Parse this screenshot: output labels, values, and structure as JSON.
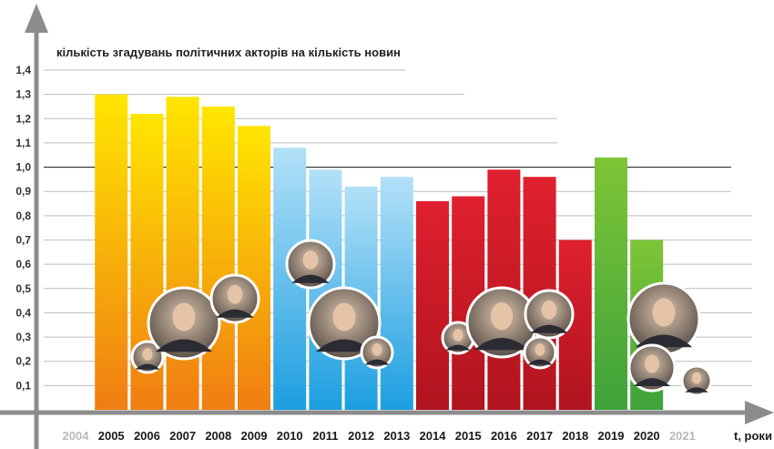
{
  "chart_data": {
    "type": "bar",
    "ylabel": "кількість згадувань політичних акторів на кількість новин",
    "xlabel": "t, роки",
    "ylim": [
      0,
      1.4
    ],
    "y_ticks": [
      "0,1",
      "0,2",
      "0,3",
      "0,4",
      "0,5",
      "0,6",
      "0,7",
      "0,8",
      "0,9",
      "1,0",
      "1,1",
      "1,2",
      "1,3",
      "1,4"
    ],
    "categories": [
      "2004",
      "2005",
      "2006",
      "2007",
      "2008",
      "2009",
      "2010",
      "2011",
      "2012",
      "2013",
      "2014",
      "2015",
      "2016",
      "2017",
      "2018",
      "2019",
      "2020",
      "2021"
    ],
    "values": [
      null,
      1.3,
      1.22,
      1.29,
      1.25,
      1.17,
      1.08,
      0.99,
      0.92,
      0.96,
      0.86,
      0.88,
      0.99,
      0.96,
      0.7,
      1.04,
      0.7,
      null
    ],
    "faded_categories": [
      "2004",
      "2021"
    ],
    "period_colors": [
      {
        "years": [
          "2005",
          "2006",
          "2007",
          "2008",
          "2009"
        ],
        "top": "#ffe600",
        "bottom": "#f07d12"
      },
      {
        "years": [
          "2010",
          "2011",
          "2012",
          "2013"
        ],
        "top": "#b3e1f8",
        "bottom": "#1c9ee0"
      },
      {
        "years": [
          "2014",
          "2015",
          "2016",
          "2017",
          "2018"
        ],
        "top": "#e0202e",
        "bottom": "#b0141e"
      },
      {
        "years": [
          "2019",
          "2020"
        ],
        "top": "#7ec536",
        "bottom": "#3ea33a"
      }
    ],
    "grid": true,
    "portraits": "photo-circles"
  }
}
